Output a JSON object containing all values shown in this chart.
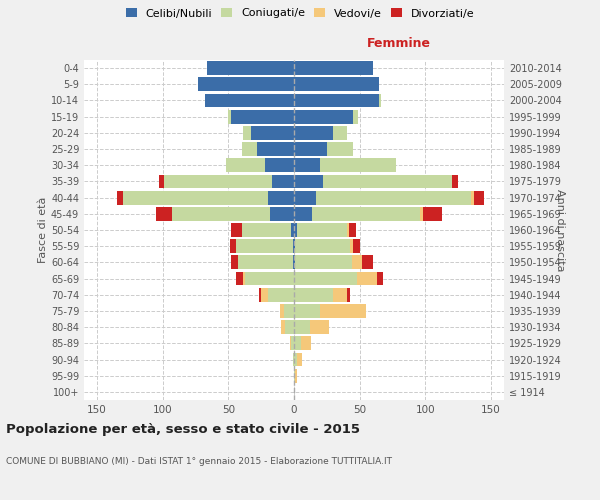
{
  "age_groups": [
    "100+",
    "95-99",
    "90-94",
    "85-89",
    "80-84",
    "75-79",
    "70-74",
    "65-69",
    "60-64",
    "55-59",
    "50-54",
    "45-49",
    "40-44",
    "35-39",
    "30-34",
    "25-29",
    "20-24",
    "15-19",
    "10-14",
    "5-9",
    "0-4"
  ],
  "birth_years": [
    "≤ 1914",
    "1915-1919",
    "1920-1924",
    "1925-1929",
    "1930-1934",
    "1935-1939",
    "1940-1944",
    "1945-1949",
    "1950-1954",
    "1955-1959",
    "1960-1964",
    "1965-1969",
    "1970-1974",
    "1975-1979",
    "1980-1984",
    "1985-1989",
    "1990-1994",
    "1995-1999",
    "2000-2004",
    "2005-2009",
    "2010-2014"
  ],
  "male": {
    "celibi": [
      0,
      0,
      0,
      0,
      0,
      0,
      0,
      0,
      1,
      1,
      2,
      18,
      20,
      17,
      22,
      28,
      33,
      48,
      68,
      73,
      66
    ],
    "coniugati": [
      0,
      0,
      1,
      2,
      7,
      8,
      20,
      37,
      42,
      43,
      38,
      75,
      110,
      82,
      30,
      12,
      6,
      2,
      0,
      0,
      0
    ],
    "vedovi": [
      0,
      0,
      0,
      1,
      3,
      3,
      5,
      2,
      0,
      0,
      0,
      0,
      0,
      0,
      0,
      0,
      0,
      0,
      0,
      0,
      0
    ],
    "divorziati": [
      0,
      0,
      0,
      0,
      0,
      0,
      2,
      5,
      5,
      5,
      8,
      12,
      5,
      4,
      0,
      0,
      0,
      0,
      0,
      0,
      0
    ]
  },
  "female": {
    "nubili": [
      0,
      0,
      0,
      0,
      0,
      0,
      0,
      0,
      1,
      1,
      2,
      14,
      17,
      22,
      20,
      25,
      30,
      45,
      65,
      65,
      60
    ],
    "coniugate": [
      0,
      1,
      2,
      5,
      12,
      20,
      30,
      48,
      43,
      42,
      38,
      82,
      118,
      98,
      58,
      20,
      10,
      4,
      1,
      0,
      0
    ],
    "vedove": [
      0,
      1,
      4,
      8,
      15,
      35,
      10,
      15,
      8,
      2,
      2,
      2,
      2,
      0,
      0,
      0,
      0,
      0,
      0,
      0,
      0
    ],
    "divorziate": [
      0,
      0,
      0,
      0,
      0,
      0,
      3,
      5,
      8,
      5,
      5,
      15,
      8,
      5,
      0,
      0,
      0,
      0,
      0,
      0,
      0
    ]
  },
  "colors": {
    "celibi": "#3b6da8",
    "coniugati": "#c5d9a0",
    "vedovi": "#f5c87a",
    "divorziati": "#cc2222"
  },
  "xlim": 160,
  "title": "Popolazione per età, sesso e stato civile - 2015",
  "subtitle": "COMUNE DI BUBBIANO (MI) - Dati ISTAT 1° gennaio 2015 - Elaborazione TUTTITALIA.IT",
  "ylabel_left": "Fasce di età",
  "ylabel_right": "Anni di nascita",
  "xlabel_right": "Femmine",
  "bg_color": "#f0f0f0",
  "plot_bg_color": "#ffffff",
  "legend_labels": [
    "Celibi/Nubili",
    "Coniugati/e",
    "Vedovi/e",
    "Divorziati/e"
  ]
}
